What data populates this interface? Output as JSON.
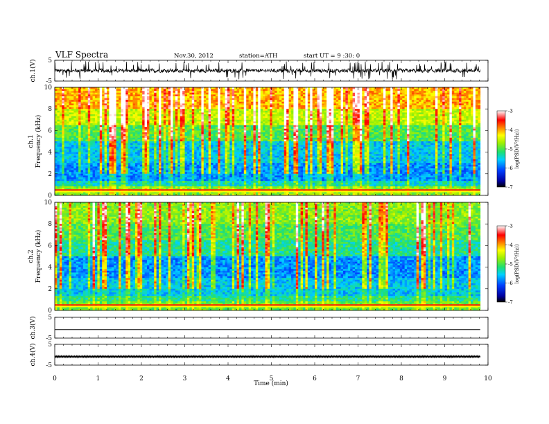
{
  "header": {
    "title": "VLF  Spectra",
    "date": "Nov.30, 2012",
    "station": "station=ATH",
    "start": "start  UT  =   9  :30: 0"
  },
  "chart_data": [
    {
      "id": "ch1",
      "type": "line",
      "ylabel": "ch.1(V)",
      "ylim": [
        -5,
        5
      ],
      "yticks": [
        "5",
        "-5"
      ],
      "xlim": [
        0,
        10
      ],
      "data_end_min": 9.82,
      "signal": "noisy waveform roughly between -2 and 2 V with frequent spikes"
    },
    {
      "id": "ch1_spec",
      "type": "heatmap",
      "ylabel": "ch.1\nFrequency  (kHz)",
      "ylabel_lines": [
        "ch.1",
        "Frequency  (kHz)"
      ],
      "ylim": [
        0,
        10
      ],
      "yticks": [
        "0",
        "2",
        "4",
        "6",
        "8",
        "10"
      ],
      "xlim": [
        0,
        10
      ],
      "data_end_min": 9.82,
      "colorbar": {
        "label": "log(PSD(V²/Hz))",
        "range": [
          -7,
          -3
        ],
        "ticks": [
          "-3",
          "-4",
          "-5",
          "-6",
          "-7"
        ]
      }
    },
    {
      "id": "ch2_spec",
      "type": "heatmap",
      "ylabel": "ch.2\nFrequency  (kHz)",
      "ylabel_lines": [
        "ch.2",
        "Frequency  (kHz)"
      ],
      "ylim": [
        0,
        10
      ],
      "yticks": [
        "0",
        "2",
        "4",
        "6",
        "8",
        "10"
      ],
      "xlim": [
        0,
        10
      ],
      "data_end_min": 9.82,
      "colorbar": {
        "label": "log(PSD(V²/Hz))",
        "range": [
          -7,
          -3
        ],
        "ticks": [
          "-3",
          "-4",
          "-5",
          "-6",
          "-7"
        ]
      }
    },
    {
      "id": "ch3",
      "type": "line",
      "ylabel": "ch.3(V)",
      "ylim": [
        -5,
        5
      ],
      "yticks": [
        "5",
        "-5"
      ],
      "xlim": [
        0,
        10
      ],
      "data_end_min": 9.82,
      "signal": "flat trace near -1 V"
    },
    {
      "id": "ch4",
      "type": "line",
      "ylabel": "ch.4(V)",
      "ylim": [
        -5,
        5
      ],
      "yticks": [
        "5",
        "-5"
      ],
      "xlim": [
        0,
        10
      ],
      "data_end_min": 9.82,
      "signal": "thick band around -1 V"
    }
  ],
  "xaxis": {
    "label": "Time  (min)",
    "ticks": [
      "0",
      "1",
      "2",
      "3",
      "4",
      "5",
      "6",
      "7",
      "8",
      "9",
      "10"
    ]
  }
}
